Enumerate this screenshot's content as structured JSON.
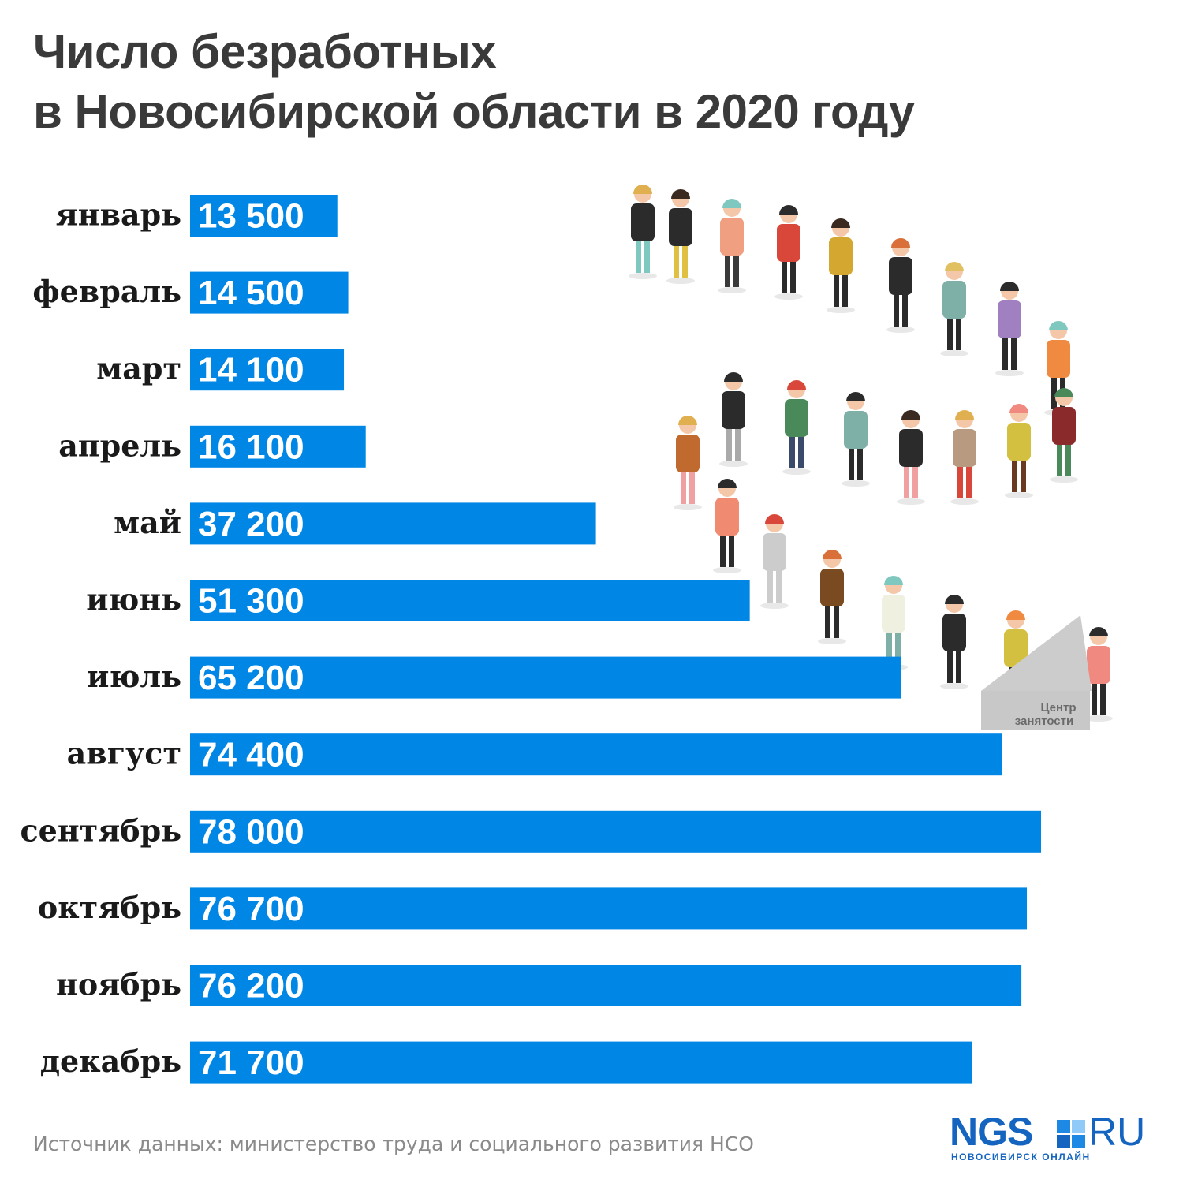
{
  "title": {
    "line1": "Число безработных",
    "line2": "в Новосибирской области в 2020 году"
  },
  "source": "Источник данных: министерство труда и социального развития НСО",
  "logo": {
    "main": "NGS",
    "suffix": "RU",
    "tagline": "НОВОСИБИРСК ОНЛАЙН"
  },
  "illustration": {
    "sign": [
      "Центр",
      "занятости"
    ]
  },
  "colors": {
    "bar": "#0087e6",
    "title": "#3a3a3a",
    "label": "#1a1a1a",
    "source": "#8a8a8a",
    "logo": "#1565c0"
  },
  "chart_data": {
    "type": "bar",
    "orientation": "horizontal",
    "title": "Число безработных в Новосибирской области в 2020 году",
    "categories": [
      "январь",
      "февраль",
      "март",
      "апрель",
      "май",
      "июнь",
      "июль",
      "август",
      "сентябрь",
      "октябрь",
      "ноябрь",
      "декабрь"
    ],
    "values": [
      13500,
      14500,
      14100,
      16100,
      37200,
      51300,
      65200,
      74400,
      78000,
      76700,
      76200,
      71700
    ],
    "value_labels": [
      "13 500",
      "14 500",
      "14 100",
      "16 100",
      "37 200",
      "51 300",
      "65 200",
      "74 400",
      "78 000",
      "76 700",
      "76 200",
      "71 700"
    ],
    "xlim": [
      0,
      78000
    ],
    "grid": false,
    "legend": "none"
  }
}
